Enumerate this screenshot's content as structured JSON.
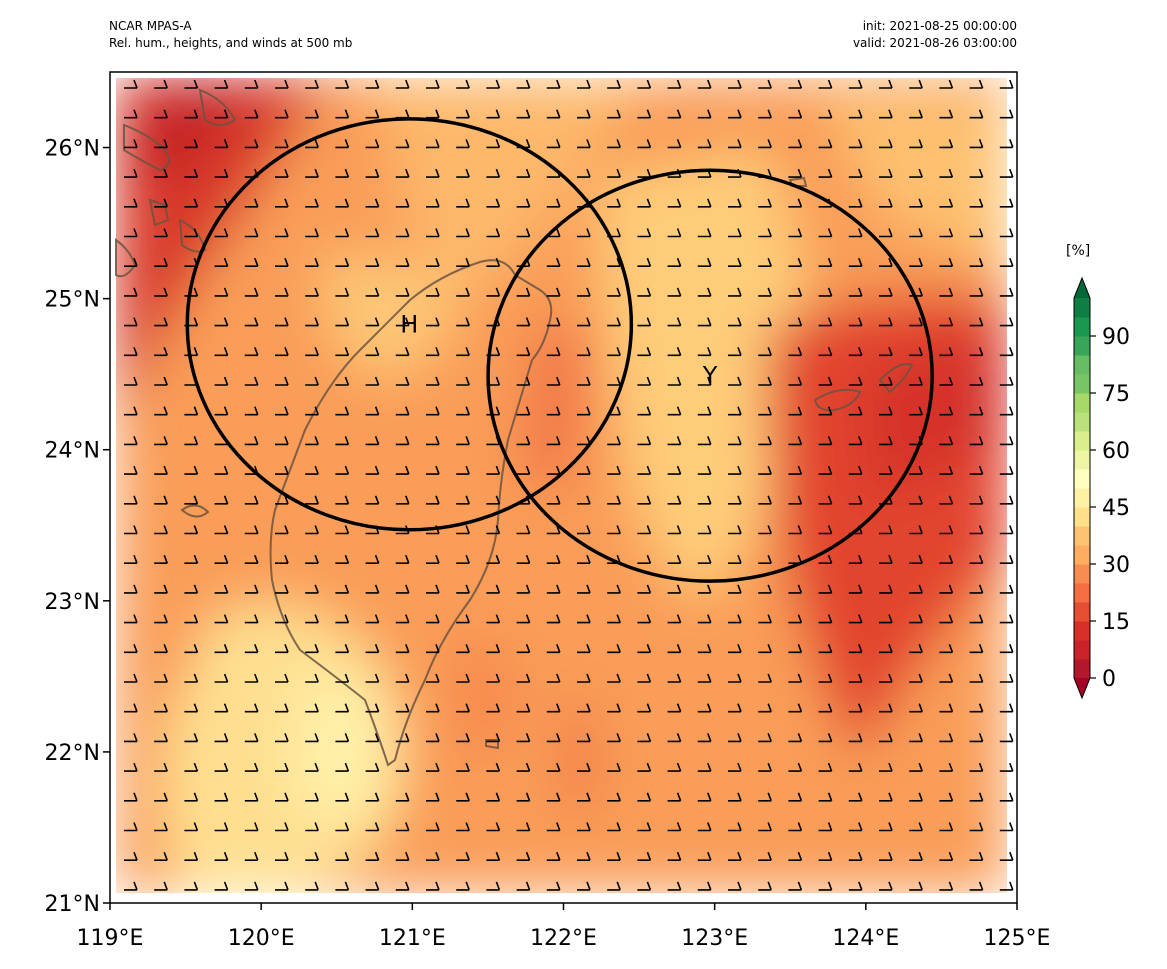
{
  "header": {
    "model": "NCAR MPAS-A",
    "field": "Rel. hum., heights, and winds at 500 mb",
    "init": "init: 2021-08-25 00:00:00",
    "valid": "valid: 2021-08-26 03:00:00"
  },
  "map": {
    "lon_range": [
      119,
      125
    ],
    "lat_range": [
      21,
      26.5
    ],
    "x_ticks": [
      "119°E",
      "120°E",
      "121°E",
      "122°E",
      "123°E",
      "124°E",
      "125°E"
    ],
    "y_ticks": [
      "21°N",
      "22°N",
      "23°N",
      "24°N",
      "25°N",
      "26°N"
    ],
    "markers": [
      {
        "label": "H",
        "lon": 120.98,
        "lat": 24.83
      },
      {
        "label": "Y",
        "lon": 122.97,
        "lat": 24.49
      }
    ],
    "range_rings": [
      {
        "center_lon": 120.98,
        "center_lat": 24.83,
        "radius_deg_lat": 1.36
      },
      {
        "center_lon": 122.97,
        "center_lat": 24.49,
        "radius_deg_lat": 1.36
      }
    ],
    "wind_barbs": {
      "direction": "westerly",
      "speed_kt": 10
    }
  },
  "colorbar": {
    "unit_label": "[%]",
    "min": 0,
    "max": 100,
    "step": 5,
    "tick_labels": [
      "0",
      "15",
      "30",
      "45",
      "60",
      "75",
      "90"
    ],
    "colors": [
      "#b2182b",
      "#c8232b",
      "#d73027",
      "#e44e33",
      "#f46d43",
      "#f88d52",
      "#fdae61",
      "#fdc272",
      "#fee08b",
      "#fef0a5",
      "#ffffbf",
      "#eef6a6",
      "#d9ef8b",
      "#bbe17c",
      "#a6d96a",
      "#79c465",
      "#66bd63",
      "#3aa55a",
      "#1a9850",
      "#107d45"
    ],
    "below_color": "#a50026",
    "above_color": "#006837"
  }
}
